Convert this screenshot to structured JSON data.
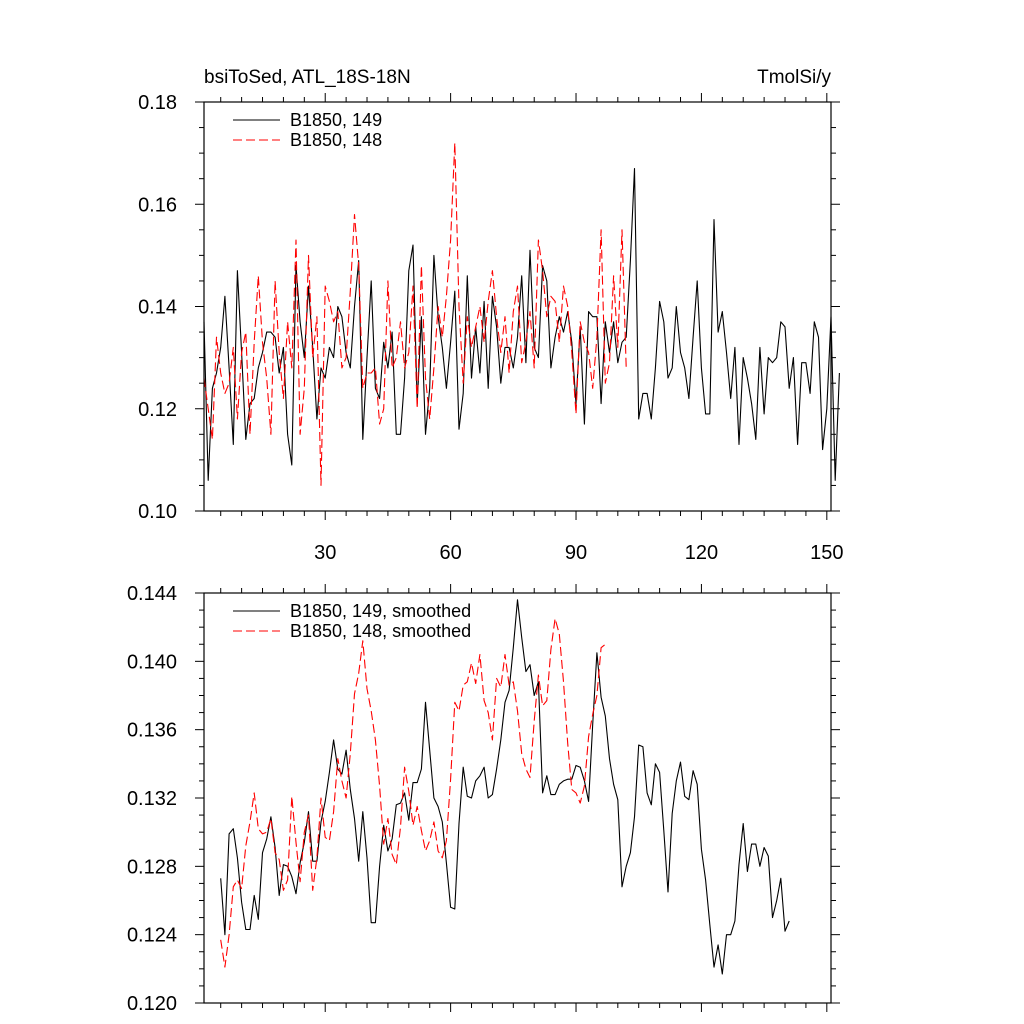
{
  "chart_data": [
    {
      "type": "line",
      "title": "bsiToSed, ATL_18S-18N",
      "units": "TmolSi/y",
      "xlim": [
        1,
        151
      ],
      "ylim": [
        0.1,
        0.18
      ],
      "x_ticks": [
        30,
        60,
        90,
        120,
        150
      ],
      "x_tick_labels": [
        "30",
        "60",
        "90",
        "120",
        "150"
      ],
      "y_ticks": [
        0.1,
        0.12,
        0.14,
        0.16,
        0.18
      ],
      "y_tick_labels": [
        "0.10",
        "0.12",
        "0.14",
        "0.16",
        "0.18"
      ],
      "legend_position": "top-left",
      "series": [
        {
          "name": "B1850, 149",
          "color": "#000000",
          "dash": "solid",
          "x_start": 1,
          "values": [
            0.137,
            0.106,
            0.124,
            0.127,
            0.132,
            0.142,
            0.128,
            0.113,
            0.147,
            0.131,
            0.114,
            0.121,
            0.122,
            0.128,
            0.131,
            0.135,
            0.135,
            0.134,
            0.127,
            0.132,
            0.115,
            0.109,
            0.148,
            0.137,
            0.13,
            0.144,
            0.132,
            0.118,
            0.128,
            0.126,
            0.132,
            0.13,
            0.14,
            0.138,
            0.131,
            0.128,
            0.14,
            0.149,
            0.114,
            0.13,
            0.145,
            0.124,
            0.122,
            0.133,
            0.128,
            0.135,
            0.115,
            0.115,
            0.126,
            0.147,
            0.152,
            0.121,
            0.138,
            0.115,
            0.124,
            0.15,
            0.138,
            0.132,
            0.124,
            0.133,
            0.143,
            0.116,
            0.123,
            0.146,
            0.126,
            0.136,
            0.127,
            0.141,
            0.124,
            0.142,
            0.136,
            0.125,
            0.132,
            0.132,
            0.128,
            0.134,
            0.146,
            0.129,
            0.151,
            0.132,
            0.13,
            0.148,
            0.145,
            0.128,
            0.134,
            0.138,
            0.135,
            0.139,
            0.133,
            0.121,
            0.136,
            0.117,
            0.139,
            0.138,
            0.138,
            0.121,
            0.137,
            0.131,
            0.137,
            0.129,
            0.133,
            0.134,
            0.149,
            0.167,
            0.118,
            0.123,
            0.123,
            0.118,
            0.128,
            0.141,
            0.137,
            0.126,
            0.128,
            0.14,
            0.131,
            0.128,
            0.122,
            0.134,
            0.145,
            0.128,
            0.119,
            0.119,
            0.157,
            0.135,
            0.139,
            0.131,
            0.122,
            0.132,
            0.113,
            0.13,
            0.126,
            0.121,
            0.114,
            0.132,
            0.119,
            0.13,
            0.129,
            0.13,
            0.137,
            0.136,
            0.124,
            0.13,
            0.113,
            0.129,
            0.129,
            0.123,
            0.137,
            0.134,
            0.112,
            0.12,
            0.138,
            0.106,
            0.127
          ]
        },
        {
          "name": "B1850, 148",
          "color": "#ff0000",
          "dash": "dashed",
          "x_start": 1,
          "values": [
            0.126,
            0.12,
            0.114,
            0.134,
            0.127,
            0.123,
            0.125,
            0.132,
            0.118,
            0.131,
            0.135,
            0.115,
            0.133,
            0.146,
            0.133,
            0.126,
            0.115,
            0.145,
            0.131,
            0.122,
            0.137,
            0.128,
            0.153,
            0.115,
            0.124,
            0.15,
            0.13,
            0.138,
            0.105,
            0.144,
            0.141,
            0.137,
            0.139,
            0.128,
            0.13,
            0.143,
            0.158,
            0.148,
            0.124,
            0.127,
            0.127,
            0.128,
            0.117,
            0.12,
            0.145,
            0.128,
            0.13,
            0.137,
            0.128,
            0.131,
            0.144,
            0.12,
            0.148,
            0.126,
            0.118,
            0.128,
            0.14,
            0.134,
            0.142,
            0.153,
            0.172,
            0.14,
            0.125,
            0.138,
            0.132,
            0.136,
            0.14,
            0.133,
            0.141,
            0.147,
            0.138,
            0.131,
            0.138,
            0.127,
            0.139,
            0.144,
            0.129,
            0.133,
            0.139,
            0.128,
            0.153,
            0.147,
            0.138,
            0.142,
            0.141,
            0.133,
            0.144,
            0.14,
            0.131,
            0.119,
            0.137,
            0.133,
            0.131,
            0.124,
            0.134,
            0.155,
            0.125,
            0.129,
            0.146,
            0.132,
            0.155,
            0.128
          ]
        }
      ]
    },
    {
      "type": "line",
      "title": "",
      "xlim": [
        1,
        151
      ],
      "ylim": [
        0.12,
        0.144
      ],
      "y_ticks": [
        0.12,
        0.124,
        0.128,
        0.132,
        0.136,
        0.14,
        0.144
      ],
      "y_tick_labels": [
        "0.120",
        "0.124",
        "0.128",
        "0.132",
        "0.136",
        "0.140",
        "0.144"
      ],
      "legend_position": "top-left",
      "series": [
        {
          "name": "B1850, 149, smoothed",
          "color": "#000000",
          "dash": "solid",
          "x_start": 5,
          "values": [
            0.1273,
            0.124,
            0.1299,
            0.1302,
            0.1285,
            0.1259,
            0.1243,
            0.1243,
            0.1263,
            0.1249,
            0.1288,
            0.1296,
            0.1309,
            0.1291,
            0.1263,
            0.1281,
            0.128,
            0.1274,
            0.1264,
            0.1282,
            0.1294,
            0.1312,
            0.1283,
            0.1283,
            0.1306,
            0.1318,
            0.1335,
            0.1354,
            0.1337,
            0.1334,
            0.1348,
            0.1325,
            0.1308,
            0.1283,
            0.1312,
            0.1285,
            0.1247,
            0.1247,
            0.128,
            0.1304,
            0.1289,
            0.1296,
            0.1316,
            0.1317,
            0.1323,
            0.1307,
            0.1329,
            0.1329,
            0.1337,
            0.1376,
            0.1348,
            0.132,
            0.1315,
            0.1306,
            0.1282,
            0.1256,
            0.1255,
            0.1305,
            0.1338,
            0.1321,
            0.132,
            0.133,
            0.1333,
            0.1338,
            0.132,
            0.1322,
            0.1337,
            0.1354,
            0.1376,
            0.1383,
            0.1408,
            0.1436,
            0.1414,
            0.1394,
            0.1398,
            0.138,
            0.1388,
            0.1323,
            0.1333,
            0.1322,
            0.1322,
            0.1328,
            0.133,
            0.1331,
            0.1331,
            0.1339,
            0.1338,
            0.133,
            0.1318,
            0.1363,
            0.1405,
            0.1379,
            0.1368,
            0.1343,
            0.1328,
            0.1319,
            0.1268,
            0.128,
            0.1288,
            0.1309,
            0.1351,
            0.135,
            0.1323,
            0.1316,
            0.134,
            0.1335,
            0.1301,
            0.1265,
            0.1311,
            0.133,
            0.1341,
            0.1321,
            0.1319,
            0.1336,
            0.1328,
            0.129,
            0.1272,
            0.1246,
            0.1221,
            0.1234,
            0.1217,
            0.124,
            0.124,
            0.1248,
            0.1281,
            0.1305,
            0.1277,
            0.1293,
            0.1293,
            0.128,
            0.1291,
            0.1286,
            0.125,
            0.126,
            0.1273,
            0.1242,
            0.1248
          ]
        },
        {
          "name": "B1850, 148, smoothed",
          "color": "#ff0000",
          "dash": "dashed",
          "x_start": 5,
          "values": [
            0.1237,
            0.1221,
            0.124,
            0.1268,
            0.1272,
            0.1267,
            0.1292,
            0.1306,
            0.1323,
            0.1302,
            0.1299,
            0.13,
            0.1308,
            0.1288,
            0.1284,
            0.1266,
            0.1272,
            0.1321,
            0.1294,
            0.1271,
            0.13,
            0.131,
            0.1266,
            0.1285,
            0.132,
            0.1297,
            0.1295,
            0.1312,
            0.1343,
            0.133,
            0.132,
            0.1346,
            0.1381,
            0.1393,
            0.1412,
            0.1384,
            0.1371,
            0.1354,
            0.1327,
            0.1293,
            0.1308,
            0.1287,
            0.1281,
            0.1303,
            0.1338,
            0.1324,
            0.1304,
            0.1315,
            0.1301,
            0.1289,
            0.1295,
            0.1306,
            0.1289,
            0.1285,
            0.1295,
            0.1331,
            0.1376,
            0.1371,
            0.1386,
            0.1388,
            0.1399,
            0.1387,
            0.1404,
            0.1377,
            0.137,
            0.1354,
            0.139,
            0.1385,
            0.1404,
            0.1386,
            0.1388,
            0.1371,
            0.1346,
            0.1337,
            0.1332,
            0.1365,
            0.1392,
            0.1374,
            0.1377,
            0.1407,
            0.1425,
            0.1416,
            0.1388,
            0.1352,
            0.1325,
            0.1323,
            0.1317,
            0.1327,
            0.1356,
            0.1369,
            0.138,
            0.1408,
            0.141
          ]
        }
      ]
    }
  ]
}
